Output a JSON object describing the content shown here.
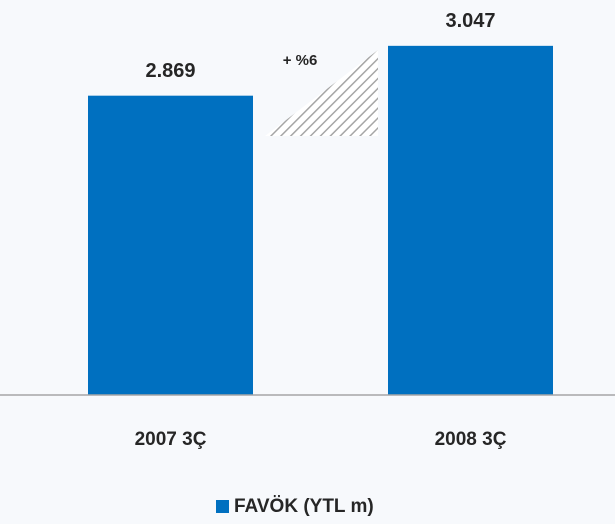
{
  "chart_data": {
    "type": "bar",
    "categories": [
      "2007 3Ç",
      "2008 3Ç"
    ],
    "series": [
      {
        "name": "FAVÖK (YTL m)",
        "color": "#0070c0",
        "values": [
          2869,
          3047
        ],
        "value_labels": [
          "2.869",
          "3.047"
        ]
      }
    ],
    "annotations": [
      "+ %6"
    ],
    "ylim": [
      1800,
      3150
    ],
    "legend": "bottom"
  }
}
